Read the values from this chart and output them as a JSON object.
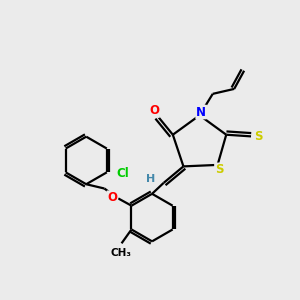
{
  "bg_color": "#ebebeb",
  "bond_color": "#000000",
  "bond_width": 1.6,
  "atom_colors": {
    "O": "#ff0000",
    "N": "#0000ff",
    "S": "#cccc00",
    "Cl": "#00cc00",
    "H": "#4488aa",
    "C": "#000000",
    "Me": "#000000"
  },
  "font_size_atom": 8.5
}
